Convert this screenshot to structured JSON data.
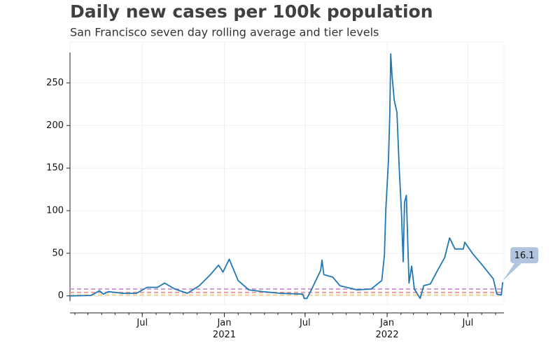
{
  "chart_data": {
    "type": "line",
    "title": "Daily new cases per 100k population",
    "subtitle": "San Francisco seven day rolling average and tier levels",
    "color": "#1f77b4",
    "x": [
      "2020-01-21",
      "2020-03-08",
      "2020-03-27",
      "2020-04-05",
      "2020-04-16",
      "2020-05-18",
      "2020-06-18",
      "2020-07-12",
      "2020-08-04",
      "2020-08-20",
      "2020-09-12",
      "2020-10-10",
      "2020-11-06",
      "2020-12-01",
      "2020-12-19",
      "2020-12-29",
      "2021-01-12",
      "2021-02-01",
      "2021-02-25",
      "2021-03-28",
      "2021-05-06",
      "2021-06-26",
      "2021-06-29",
      "2021-07-05",
      "2021-07-16",
      "2021-08-05",
      "2021-08-08",
      "2021-08-12",
      "2021-09-01",
      "2021-09-17",
      "2021-10-26",
      "2021-11-26",
      "2021-12-20",
      "2021-12-26",
      "2021-12-29",
      "2022-01-04",
      "2022-01-07",
      "2022-01-09",
      "2022-01-12",
      "2022-01-17",
      "2022-01-23",
      "2022-01-28",
      "2022-02-02",
      "2022-02-06",
      "2022-02-09",
      "2022-02-13",
      "2022-02-19",
      "2022-02-25",
      "2022-03-03",
      "2022-03-16",
      "2022-03-24",
      "2022-04-08",
      "2022-04-24",
      "2022-05-10",
      "2022-05-21",
      "2022-06-02",
      "2022-06-21",
      "2022-06-24",
      "2022-07-11",
      "2022-08-04",
      "2022-08-27",
      "2022-09-04",
      "2022-09-14",
      "2022-09-17"
    ],
    "values": [
      0,
      0.5,
      6,
      2,
      5,
      3,
      3,
      10,
      10,
      15,
      8,
      3,
      12,
      25,
      36,
      28,
      43,
      18,
      7,
      5,
      3,
      2,
      -3,
      -3,
      8,
      30,
      42,
      25,
      22,
      12,
      7,
      8,
      18,
      48,
      100,
      160,
      215,
      284,
      258,
      230,
      215,
      150,
      100,
      40,
      110,
      118,
      15,
      35,
      8,
      -3,
      12,
      14,
      30,
      45,
      68,
      55,
      55,
      63,
      50,
      35,
      20,
      2,
      1,
      16.1
    ],
    "xlim": [
      "2020-01-21",
      "2022-09-20"
    ],
    "xticks": [
      {
        "value": "2020-07-01",
        "label": "Jul"
      },
      {
        "value": "2021-01-01",
        "label": "Jan\n2021"
      },
      {
        "value": "2021-07-01",
        "label": "Jul"
      },
      {
        "value": "2022-01-01",
        "label": "Jan\n2022"
      },
      {
        "value": "2022-07-01",
        "label": "Jul"
      }
    ],
    "ylim": [
      -20,
      298
    ],
    "yticks": [
      0,
      50,
      100,
      150,
      200,
      250
    ],
    "grid": true,
    "reference_lines": [
      {
        "value": 8,
        "color": "#c99bd0"
      },
      {
        "value": 4,
        "color": "#e89a9a"
      },
      {
        "value": 1,
        "color": "#f3cf8e"
      }
    ],
    "annotations": [
      {
        "x": "2022-09-17",
        "y": 16.1,
        "text": "16.1"
      }
    ]
  }
}
